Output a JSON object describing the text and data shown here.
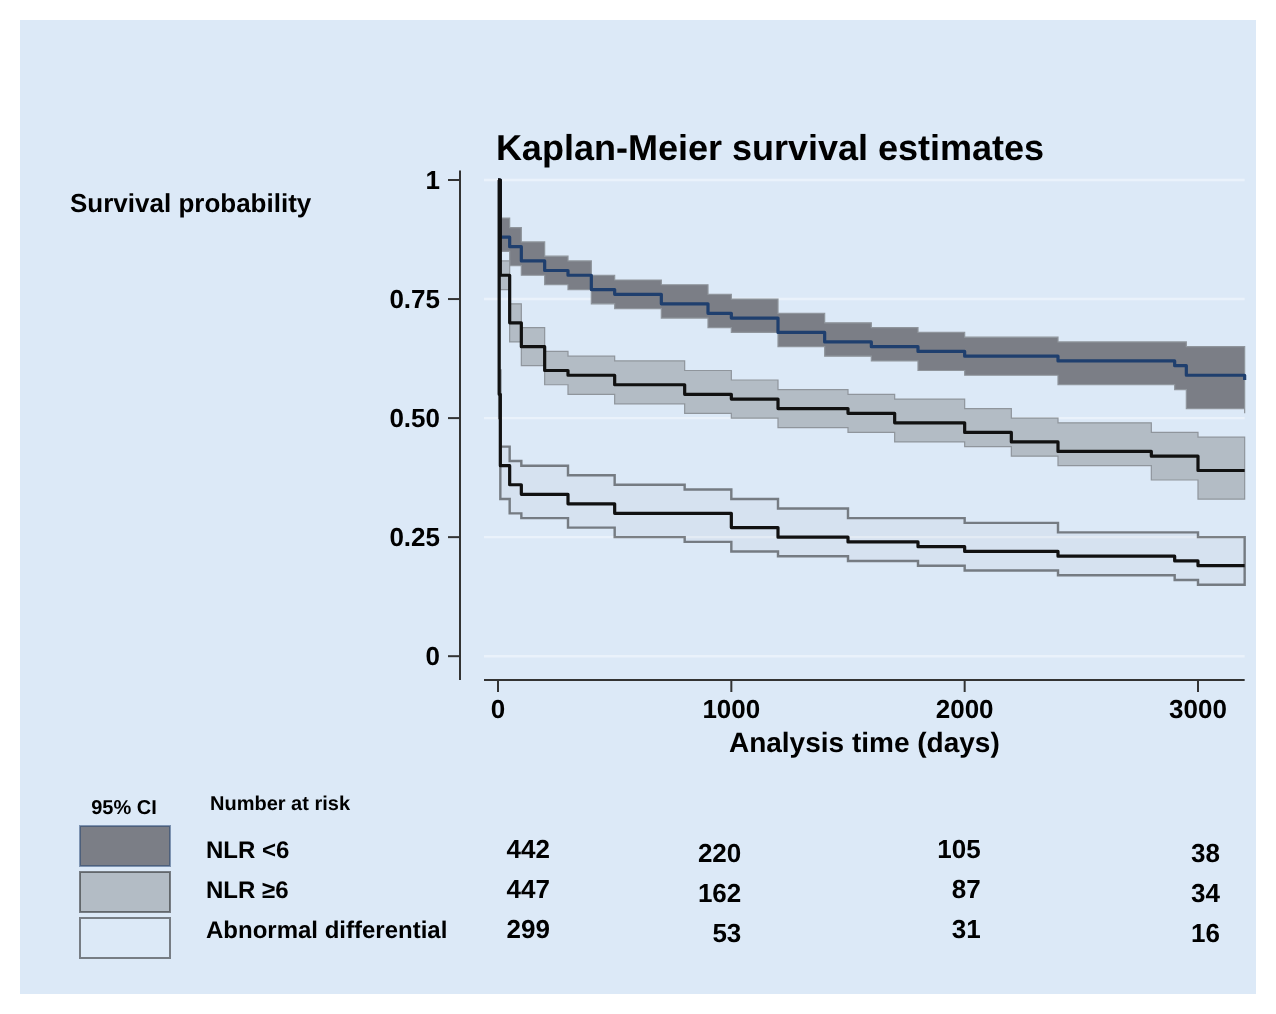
{
  "chart_data": {
    "type": "step",
    "title": "Kaplan-Meier survival estimates",
    "xlabel": "Analysis time (days)",
    "ylabel": "Survival probability",
    "legend_title": "95% CI",
    "legend": "bottom",
    "grid": "y",
    "xlim": [
      -60,
      3200
    ],
    "ylim": [
      -0.05,
      1.02
    ],
    "xticks": [
      0,
      1000,
      2000,
      3000
    ],
    "yticks": [
      0,
      {
        "value": 0.25,
        "label": "0.25"
      },
      {
        "value": 0.5,
        "label": "0.50"
      },
      {
        "value": 0.75,
        "label": "0.75"
      },
      1
    ],
    "colors": [
      "#7b7e86",
      "#b3bcc5",
      null
    ],
    "annotations": [
      "Number at risk",
      "442",
      "220",
      "105",
      "38",
      "447",
      "162",
      "87",
      "34",
      "299",
      "53",
      "31",
      "16"
    ],
    "series": [
      {
        "name": "NLR <6",
        "color": "#1f3f6e",
        "x": [
          0,
          10,
          50,
          100,
          200,
          300,
          400,
          500,
          700,
          900,
          1000,
          1200,
          1400,
          1600,
          1800,
          2000,
          2400,
          2900,
          2950,
          3200
        ],
        "values": [
          1,
          0.88,
          0.86,
          0.83,
          0.81,
          0.8,
          0.77,
          0.76,
          0.74,
          0.72,
          0.71,
          0.68,
          0.66,
          0.65,
          0.64,
          0.63,
          0.62,
          0.61,
          0.59,
          0.58
        ],
        "upper": [
          1,
          0.92,
          0.9,
          0.87,
          0.84,
          0.83,
          0.8,
          0.79,
          0.78,
          0.76,
          0.75,
          0.72,
          0.7,
          0.69,
          0.68,
          0.67,
          0.66,
          0.66,
          0.65,
          0.65
        ],
        "lower": [
          1,
          0.85,
          0.82,
          0.8,
          0.78,
          0.77,
          0.74,
          0.73,
          0.71,
          0.69,
          0.68,
          0.65,
          0.63,
          0.62,
          0.6,
          0.59,
          0.57,
          0.56,
          0.52,
          0.51
        ]
      },
      {
        "name": "NLR ≥6",
        "color": "#111111",
        "x": [
          0,
          10,
          50,
          100,
          200,
          300,
          500,
          800,
          1000,
          1200,
          1500,
          1700,
          2000,
          2200,
          2400,
          2800,
          3000,
          3200
        ],
        "values": [
          1,
          0.8,
          0.7,
          0.65,
          0.6,
          0.59,
          0.57,
          0.55,
          0.54,
          0.52,
          0.51,
          0.49,
          0.47,
          0.45,
          0.43,
          0.42,
          0.39,
          0.39
        ],
        "upper": [
          1,
          0.83,
          0.74,
          0.69,
          0.64,
          0.63,
          0.62,
          0.6,
          0.58,
          0.56,
          0.55,
          0.54,
          0.52,
          0.5,
          0.49,
          0.47,
          0.46,
          0.46
        ],
        "lower": [
          1,
          0.77,
          0.66,
          0.61,
          0.57,
          0.55,
          0.53,
          0.51,
          0.5,
          0.48,
          0.47,
          0.45,
          0.44,
          0.42,
          0.4,
          0.37,
          0.33,
          0.33
        ]
      },
      {
        "name": "Abnormal differential",
        "color": "#111111",
        "x": [
          0,
          5,
          10,
          50,
          100,
          300,
          500,
          800,
          1000,
          1200,
          1500,
          1800,
          2000,
          2400,
          2900,
          3000,
          3200
        ],
        "values": [
          1,
          0.55,
          0.4,
          0.36,
          0.34,
          0.32,
          0.3,
          0.3,
          0.27,
          0.25,
          0.24,
          0.23,
          0.22,
          0.21,
          0.2,
          0.19,
          0.19
        ],
        "upper": [
          1,
          0.6,
          0.44,
          0.41,
          0.4,
          0.38,
          0.36,
          0.35,
          0.33,
          0.31,
          0.29,
          0.29,
          0.28,
          0.26,
          0.26,
          0.25,
          0.25
        ],
        "lower": [
          1,
          0.5,
          0.33,
          0.3,
          0.29,
          0.27,
          0.25,
          0.24,
          0.22,
          0.21,
          0.2,
          0.19,
          0.18,
          0.17,
          0.16,
          0.15,
          0.15
        ]
      }
    ]
  }
}
